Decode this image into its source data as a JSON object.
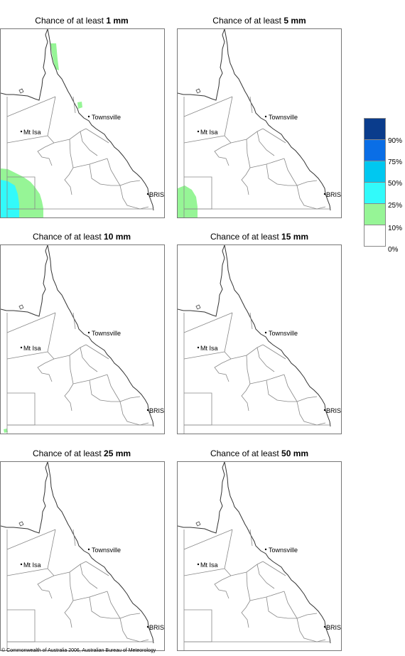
{
  "panels": [
    {
      "prefix": "Chance of at least ",
      "threshold": "1 mm",
      "areas": [
        "green-sw",
        "cyan-sw",
        "green-cape"
      ]
    },
    {
      "prefix": "Chance of at least ",
      "threshold": "5 mm",
      "areas": [
        "green-sw-small"
      ]
    },
    {
      "prefix": "Chance of at least ",
      "threshold": "10 mm",
      "areas": [
        "green-dot"
      ]
    },
    {
      "prefix": "Chance of at least ",
      "threshold": "15 mm",
      "areas": []
    },
    {
      "prefix": "Chance of at least ",
      "threshold": "25 mm",
      "areas": []
    },
    {
      "prefix": "Chance of at least ",
      "threshold": "50 mm",
      "areas": []
    }
  ],
  "map_labels": {
    "townsville": "Townsville",
    "mt_isa": "Mt Isa",
    "brisbane": "BRIS"
  },
  "legend": {
    "colors": [
      "#0a3c8c",
      "#0a6ee6",
      "#00c8f0",
      "#32fafa",
      "#96f596",
      "#ffffff"
    ],
    "labels": [
      "90%",
      "75%",
      "50%",
      "25%",
      "10%",
      "0%"
    ]
  },
  "footer": "© Commonwealth of Australia 2006, Australian Bureau of Meteorology"
}
